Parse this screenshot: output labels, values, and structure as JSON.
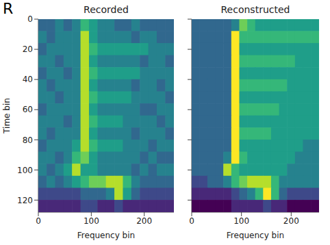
{
  "panel_label": "R",
  "chart_data": [
    {
      "type": "heatmap",
      "title": "Recorded",
      "xlabel": "Frequency bin",
      "ylabel": "Time bin",
      "xlim": [
        0,
        256
      ],
      "ylim": [
        0,
        128
      ],
      "xticks": [
        0,
        100,
        200
      ],
      "yticks": [
        0,
        20,
        40,
        60,
        80,
        100,
        120
      ],
      "x_edges": [
        0,
        16,
        32,
        48,
        64,
        80,
        96,
        112,
        128,
        144,
        160,
        176,
        192,
        208,
        224,
        240,
        256
      ],
      "y_edges": [
        0,
        8,
        16,
        24,
        32,
        40,
        48,
        56,
        64,
        72,
        80,
        88,
        96,
        104,
        112,
        120,
        128
      ],
      "zlim": [
        0,
        9
      ],
      "cells": [
        [
          3,
          3,
          4,
          3,
          4,
          6,
          5,
          4,
          4,
          3,
          3,
          4,
          3,
          3,
          3,
          3
        ],
        [
          4,
          3,
          4,
          4,
          4,
          8,
          5,
          4,
          4,
          4,
          4,
          3,
          4,
          4,
          3,
          3
        ],
        [
          3,
          4,
          4,
          4,
          4,
          8,
          6,
          5,
          5,
          5,
          5,
          5,
          5,
          4,
          4,
          4
        ],
        [
          4,
          4,
          3,
          4,
          4,
          8,
          5,
          4,
          4,
          4,
          4,
          4,
          3,
          4,
          4,
          3
        ],
        [
          3,
          4,
          4,
          3,
          4,
          8,
          6,
          5,
          5,
          5,
          5,
          5,
          4,
          4,
          4,
          4
        ],
        [
          4,
          3,
          4,
          4,
          4,
          8,
          5,
          4,
          4,
          4,
          4,
          3,
          4,
          4,
          3,
          4
        ],
        [
          4,
          4,
          3,
          4,
          4,
          8,
          6,
          5,
          5,
          5,
          5,
          4,
          4,
          4,
          4,
          3
        ],
        [
          3,
          4,
          4,
          4,
          4,
          8,
          5,
          4,
          4,
          4,
          4,
          4,
          3,
          3,
          4,
          4
        ],
        [
          4,
          4,
          4,
          3,
          4,
          8,
          6,
          5,
          5,
          5,
          4,
          4,
          4,
          4,
          3,
          4
        ],
        [
          4,
          3,
          4,
          4,
          4,
          8,
          5,
          4,
          4,
          4,
          4,
          3,
          4,
          4,
          4,
          3
        ],
        [
          3,
          4,
          4,
          4,
          5,
          8,
          6,
          5,
          5,
          5,
          4,
          4,
          4,
          3,
          4,
          4
        ],
        [
          4,
          4,
          3,
          4,
          6,
          7,
          5,
          4,
          4,
          4,
          4,
          4,
          3,
          4,
          3,
          3
        ],
        [
          4,
          3,
          4,
          5,
          8,
          5,
          5,
          4,
          4,
          4,
          4,
          3,
          4,
          3,
          4,
          4
        ],
        [
          3,
          4,
          3,
          4,
          5,
          6,
          7,
          7,
          8,
          8,
          6,
          4,
          3,
          3,
          3,
          3
        ],
        [
          2,
          2,
          2,
          2,
          2,
          3,
          3,
          3,
          4,
          8,
          5,
          3,
          2,
          2,
          2,
          2
        ],
        [
          1,
          1,
          1,
          1,
          1,
          2,
          2,
          1,
          1,
          2,
          1,
          1,
          1,
          1,
          1,
          1
        ]
      ]
    },
    {
      "type": "heatmap",
      "title": "Reconstructed",
      "xlabel": "Frequency bin",
      "tick_labels": "x",
      "xlim": [
        0,
        256
      ],
      "ylim": [
        0,
        128
      ],
      "xticks": [
        0,
        100,
        200
      ],
      "yticks": [
        0,
        20,
        40,
        60,
        80,
        100,
        120
      ],
      "x_edges": [
        0,
        16,
        32,
        48,
        64,
        80,
        96,
        112,
        128,
        144,
        160,
        176,
        192,
        208,
        224,
        240,
        256
      ],
      "y_edges": [
        0,
        8,
        16,
        24,
        32,
        40,
        48,
        56,
        64,
        72,
        80,
        88,
        96,
        104,
        112,
        120,
        128
      ],
      "zlim": [
        0,
        9
      ],
      "cells": [
        [
          3,
          3,
          3,
          3,
          3,
          4,
          7,
          6,
          5,
          5,
          5,
          5,
          5,
          5,
          5,
          5
        ],
        [
          3,
          3,
          3,
          3,
          3,
          9,
          6,
          6,
          6,
          6,
          6,
          6,
          6,
          6,
          6,
          6
        ],
        [
          3,
          3,
          3,
          3,
          3,
          9,
          5,
          5,
          5,
          5,
          5,
          5,
          5,
          5,
          5,
          5
        ],
        [
          3,
          3,
          3,
          3,
          3,
          9,
          6,
          6,
          6,
          6,
          6,
          6,
          6,
          5,
          5,
          5
        ],
        [
          3,
          3,
          3,
          3,
          3,
          9,
          5,
          5,
          5,
          5,
          5,
          5,
          5,
          5,
          5,
          5
        ],
        [
          3,
          3,
          3,
          3,
          3,
          9,
          6,
          6,
          6,
          6,
          6,
          6,
          5,
          5,
          5,
          5
        ],
        [
          3,
          3,
          3,
          3,
          3,
          9,
          5,
          5,
          5,
          5,
          5,
          5,
          5,
          5,
          5,
          5
        ],
        [
          3,
          3,
          3,
          3,
          3,
          9,
          6,
          6,
          6,
          6,
          6,
          5,
          5,
          5,
          5,
          5
        ],
        [
          3,
          3,
          3,
          3,
          3,
          9,
          5,
          5,
          5,
          5,
          5,
          5,
          5,
          5,
          5,
          5
        ],
        [
          3,
          3,
          3,
          3,
          3,
          9,
          6,
          6,
          6,
          6,
          5,
          5,
          5,
          5,
          5,
          5
        ],
        [
          3,
          3,
          3,
          3,
          3,
          9,
          5,
          5,
          5,
          5,
          5,
          5,
          5,
          5,
          4,
          4
        ],
        [
          3,
          3,
          3,
          3,
          4,
          9,
          6,
          5,
          5,
          5,
          5,
          5,
          5,
          4,
          4,
          4
        ],
        [
          3,
          3,
          3,
          3,
          8,
          6,
          5,
          5,
          5,
          5,
          5,
          5,
          4,
          4,
          4,
          4
        ],
        [
          2,
          2,
          3,
          3,
          4,
          6,
          7,
          8,
          8,
          8,
          6,
          4,
          4,
          4,
          4,
          4
        ],
        [
          1,
          1,
          1,
          1,
          1,
          2,
          3,
          4,
          6,
          9,
          6,
          3,
          2,
          2,
          2,
          2
        ],
        [
          0,
          0,
          0,
          0,
          0,
          1,
          1,
          1,
          1,
          2,
          1,
          1,
          0,
          0,
          0,
          0
        ]
      ]
    }
  ]
}
